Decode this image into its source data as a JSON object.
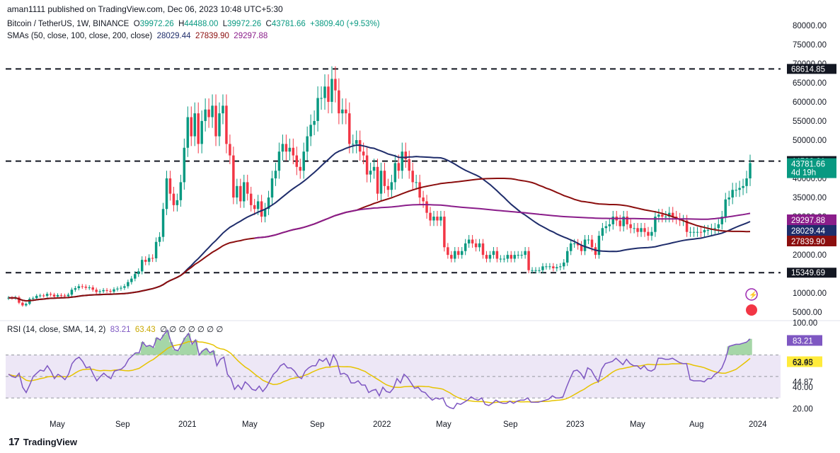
{
  "publisher": "aman1111 published on TradingView.com, Dec 06, 2023 10:48 UTC+5:30",
  "header": {
    "symbol": "Bitcoin / TetherUS, 1W, BINANCE",
    "o_label": "O",
    "o": "39972.26",
    "h_label": "H",
    "h": "44488.00",
    "l_label": "L",
    "l": "39972.26",
    "c_label": "C",
    "c": "43781.66",
    "change": "+3809.40 (+9.53%)",
    "sma_label": "SMAs (50, close, 100, close, 200, close)",
    "sma50": "28029.44",
    "sma100": "27839.90",
    "sma200": "29297.88"
  },
  "rsi_header": {
    "label": "RSI (14, close, SMA, 14, 2)",
    "rsi": "83.21",
    "rsi_ma": "63.43",
    "placeholders": [
      "∅",
      "∅",
      "∅",
      "∅",
      "∅",
      "∅",
      "∅"
    ]
  },
  "footer": {
    "logo_text": "TradingView"
  },
  "colors": {
    "up": "#089981",
    "down": "#f23645",
    "sma50": "#1f2d6b",
    "sma100": "#8b0e0e",
    "sma200": "#8a1d8a",
    "rsi": "#7e57c2",
    "rsi_ma": "#e6c300",
    "rsi_band": "#ede7f6"
  },
  "chart_data": [
    {
      "type": "candlestick",
      "title": "Bitcoin / TetherUS, 1W, BINANCE",
      "price_axis_ticks": [
        "80000.00",
        "75000.00",
        "70000.00",
        "65000.00",
        "60000.00",
        "55000.00",
        "50000.00",
        "45000.00",
        "40000.00",
        "35000.00",
        "30000.00",
        "25000.00",
        "20000.00",
        "15000.00",
        "10000.00",
        "5000.00"
      ],
      "ylim": [
        3000,
        82000
      ],
      "time_axis_ticks": [
        "May",
        "Sep",
        "2021",
        "May",
        "Sep",
        "2022",
        "May",
        "Sep",
        "2023",
        "May",
        "Aug",
        "2024"
      ],
      "current_price": {
        "value": "43781.66",
        "countdown": "4d 19h"
      },
      "horizontal_levels": [
        {
          "value": 68614.85,
          "label": "68614.85"
        },
        {
          "value": 44522.61,
          "label": "44522.61"
        },
        {
          "value": 15349.69,
          "label": "15349.69"
        }
      ],
      "sma_labels": [
        {
          "name": "SMA 200",
          "value": "29297.88"
        },
        {
          "name": "SMA 50",
          "value": "28029.44"
        },
        {
          "name": "SMA 100",
          "value": "27839.90"
        }
      ],
      "weekly_close_approx": [
        8800,
        8700,
        8900,
        7500,
        6800,
        7200,
        8500,
        8700,
        9300,
        9400,
        9300,
        9800,
        9600,
        9100,
        9500,
        9400,
        9200,
        9600,
        10900,
        11300,
        11800,
        11700,
        11400,
        11500,
        10900,
        10300,
        10500,
        10800,
        10600,
        10400,
        11000,
        11200,
        11400,
        11800,
        12900,
        13800,
        15000,
        15700,
        18700,
        18200,
        19200,
        19100,
        23400,
        24700,
        32000,
        40000,
        36000,
        33000,
        34300,
        39000,
        48000,
        56000,
        51000,
        57000,
        49000,
        55000,
        58000,
        56000,
        59000,
        51000,
        57000,
        59000,
        49000,
        46000,
        35000,
        38000,
        34000,
        39000,
        36000,
        33000,
        32000,
        34000,
        30000,
        32000,
        35000,
        40000,
        42000,
        47000,
        49000,
        47000,
        48000,
        46000,
        43000,
        42000,
        47000,
        51000,
        54000,
        55000,
        61000,
        61000,
        64000,
        60000,
        66000,
        63000,
        57000,
        58000,
        57000,
        49000,
        49000,
        50000,
        47000,
        46000,
        41000,
        42000,
        43000,
        36000,
        42000,
        38000,
        37000,
        39000,
        44000,
        42000,
        47000,
        45000,
        42000,
        39000,
        39000,
        35000,
        34000,
        31000,
        29000,
        30000,
        29000,
        30000,
        22000,
        20000,
        19000,
        21000,
        20000,
        21000,
        23000,
        24000,
        23000,
        22000,
        23000,
        20000,
        19000,
        20000,
        21000,
        19000,
        19000,
        19000,
        20000,
        19000,
        20000,
        20000,
        20000,
        21000,
        16000,
        16000,
        16000,
        16000,
        17000,
        17000,
        17000,
        16500,
        16800,
        17000,
        18000,
        21000,
        23000,
        23000,
        22500,
        21000,
        24000,
        24000,
        22000,
        20000,
        25000,
        27000,
        27500,
        28000,
        30000,
        29000,
        27500,
        30000,
        28000,
        27000,
        27000,
        26000,
        27000,
        26000,
        25000,
        26000,
        30000,
        30500,
        30000,
        30000,
        31000,
        30000,
        29500,
        29000,
        29000,
        26000,
        26000,
        26000,
        26000,
        25900,
        26500,
        26500,
        26800,
        27000,
        28000,
        30000,
        34500,
        35000,
        37000,
        37000,
        37500,
        38000,
        40000,
        44000
      ],
      "sma_series": [
        {
          "name": "SMA 50",
          "value": "28029.44"
        },
        {
          "name": "SMA 100",
          "value": "27839.90"
        },
        {
          "name": "SMA 200",
          "value": "29297.88"
        }
      ]
    },
    {
      "type": "line",
      "title": "RSI (14, close, SMA, 14, 2)",
      "ylim": [
        15,
        100
      ],
      "axis_ticks": [
        "100.00",
        "83.21",
        "63.43",
        "62.95",
        "44.87",
        "40.00",
        "20.00"
      ],
      "levels": [
        70,
        50,
        30
      ],
      "series": [
        {
          "name": "RSI",
          "last": 83.21,
          "values": [
            52,
            50,
            49,
            53,
            40,
            35,
            42,
            50,
            53,
            56,
            55,
            60,
            55,
            48,
            52,
            50,
            47,
            52,
            62,
            66,
            68,
            64,
            58,
            59,
            52,
            46,
            50,
            53,
            50,
            48,
            55,
            56,
            57,
            60,
            66,
            69,
            72,
            72,
            82,
            78,
            79,
            77,
            86,
            84,
            89,
            93,
            82,
            75,
            74,
            80,
            86,
            90,
            80,
            84,
            70,
            74,
            76,
            72,
            74,
            60,
            66,
            68,
            52,
            48,
            38,
            42,
            38,
            45,
            42,
            38,
            37,
            41,
            36,
            40,
            46,
            52,
            55,
            60,
            62,
            58,
            58,
            55,
            50,
            48,
            55,
            58,
            60,
            60,
            66,
            64,
            67,
            60,
            70,
            64,
            52,
            53,
            51,
            44,
            44,
            46,
            42,
            42,
            35,
            37,
            38,
            32,
            40,
            36,
            35,
            39,
            48,
            44,
            52,
            49,
            44,
            39,
            40,
            36,
            35,
            31,
            28,
            30,
            29,
            30,
            23,
            21,
            20,
            25,
            24,
            26,
            28,
            31,
            29,
            28,
            30,
            24,
            23,
            25,
            28,
            26,
            25,
            25,
            27,
            25,
            27,
            28,
            28,
            30,
            26,
            26,
            26,
            27,
            28,
            29,
            32,
            30,
            30,
            31,
            40,
            48,
            55,
            56,
            53,
            48,
            58,
            56,
            50,
            45,
            57,
            62,
            63,
            64,
            67,
            64,
            61,
            66,
            62,
            60,
            60,
            57,
            60,
            56,
            55,
            57,
            67,
            67,
            66,
            66,
            67,
            65,
            63,
            62,
            62,
            47,
            46,
            46,
            46,
            45,
            48,
            48,
            52,
            54,
            58,
            66,
            78,
            79,
            80,
            80,
            81,
            82,
            85
          ]
        },
        {
          "name": "RSI SMA",
          "last": 63.43
        }
      ]
    }
  ]
}
